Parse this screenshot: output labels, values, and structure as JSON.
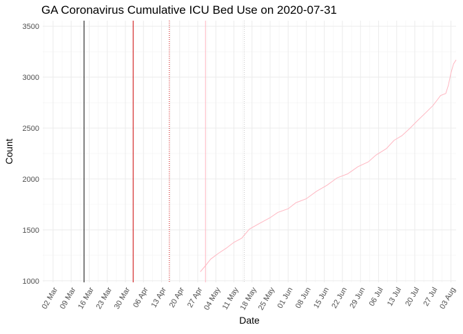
{
  "chart_data": {
    "type": "line",
    "title": "GA Coronavirus Cumulative ICU Bed Use on 2020-07-31",
    "xlabel": "Date",
    "ylabel": "Count",
    "xlim": [
      "2020-02-27",
      "2020-08-05"
    ],
    "ylim": [
      985,
      3555
    ],
    "yticks": [
      1000,
      1500,
      2000,
      2500,
      3000,
      3500
    ],
    "xticks": [
      {
        "date": "2020-03-02",
        "label": "02 Mar"
      },
      {
        "date": "2020-03-09",
        "label": "09 Mar"
      },
      {
        "date": "2020-03-16",
        "label": "16 Mar"
      },
      {
        "date": "2020-03-23",
        "label": "23 Mar"
      },
      {
        "date": "2020-03-30",
        "label": "30 Mar"
      },
      {
        "date": "2020-04-06",
        "label": "06 Apr"
      },
      {
        "date": "2020-04-13",
        "label": "13 Apr"
      },
      {
        "date": "2020-04-20",
        "label": "20 Apr"
      },
      {
        "date": "2020-04-27",
        "label": "27 Apr"
      },
      {
        "date": "2020-05-04",
        "label": "04 May"
      },
      {
        "date": "2020-05-11",
        "label": "11 May"
      },
      {
        "date": "2020-05-18",
        "label": "18 May"
      },
      {
        "date": "2020-05-25",
        "label": "25 May"
      },
      {
        "date": "2020-06-01",
        "label": "01 Jun"
      },
      {
        "date": "2020-06-08",
        "label": "08 Jun"
      },
      {
        "date": "2020-06-15",
        "label": "15 Jun"
      },
      {
        "date": "2020-06-22",
        "label": "22 Jun"
      },
      {
        "date": "2020-06-29",
        "label": "29 Jun"
      },
      {
        "date": "2020-07-06",
        "label": "06 Jul"
      },
      {
        "date": "2020-07-13",
        "label": "13 Jul"
      },
      {
        "date": "2020-07-20",
        "label": "20 Jul"
      },
      {
        "date": "2020-07-27",
        "label": "27 Jul"
      },
      {
        "date": "2020-08-03",
        "label": "03 Aug"
      }
    ],
    "grid": true,
    "legend": "none",
    "reference_lines": [
      {
        "date": "2020-03-14",
        "color": "#000000",
        "style": "solid"
      },
      {
        "date": "2020-04-02",
        "color": "#cc0000",
        "style": "solid"
      },
      {
        "date": "2020-04-16",
        "color": "#cc0000",
        "style": "dotted"
      },
      {
        "date": "2020-04-30",
        "color": "#ffb6c1",
        "style": "solid"
      },
      {
        "date": "2020-05-15",
        "color": "#c8c8c8",
        "style": "dotted"
      }
    ],
    "series": [
      {
        "color": "#ffb6c1",
        "points": [
          [
            "2020-04-28",
            1089
          ],
          [
            "2020-04-30",
            1149
          ],
          [
            "2020-05-02",
            1213
          ],
          [
            "2020-05-05",
            1270
          ],
          [
            "2020-05-08",
            1320
          ],
          [
            "2020-05-11",
            1378
          ],
          [
            "2020-05-14",
            1418
          ],
          [
            "2020-05-17",
            1508
          ],
          [
            "2020-05-21",
            1565
          ],
          [
            "2020-05-25",
            1620
          ],
          [
            "2020-05-28",
            1672
          ],
          [
            "2020-06-01",
            1708
          ],
          [
            "2020-06-04",
            1767
          ],
          [
            "2020-06-08",
            1806
          ],
          [
            "2020-06-12",
            1880
          ],
          [
            "2020-06-16",
            1938
          ],
          [
            "2020-06-20",
            2012
          ],
          [
            "2020-06-24",
            2050
          ],
          [
            "2020-06-28",
            2121
          ],
          [
            "2020-07-02",
            2168
          ],
          [
            "2020-07-05",
            2235
          ],
          [
            "2020-07-09",
            2298
          ],
          [
            "2020-07-12",
            2380
          ],
          [
            "2020-07-15",
            2425
          ],
          [
            "2020-07-18",
            2495
          ],
          [
            "2020-07-21",
            2572
          ],
          [
            "2020-07-24",
            2645
          ],
          [
            "2020-07-27",
            2720
          ],
          [
            "2020-07-30",
            2820
          ],
          [
            "2020-08-01",
            2840
          ],
          [
            "2020-08-02",
            2920
          ],
          [
            "2020-08-03",
            3040
          ],
          [
            "2020-08-04",
            3130
          ],
          [
            "2020-08-05",
            3170
          ]
        ]
      }
    ]
  }
}
